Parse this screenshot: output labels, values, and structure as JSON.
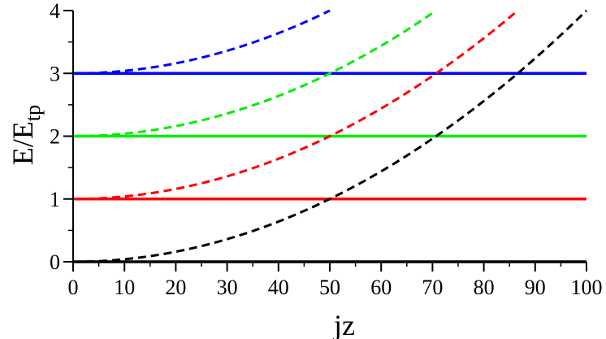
{
  "chart_data": {
    "type": "line",
    "xlabel": "jz",
    "ylabel_main": "E/E",
    "ylabel_sub": "tp",
    "xlim": [
      0,
      100
    ],
    "ylim": [
      0,
      4
    ],
    "xticks": [
      0,
      10,
      20,
      30,
      40,
      50,
      60,
      70,
      80,
      90,
      100
    ],
    "yticks": [
      0,
      1,
      2,
      3,
      4
    ],
    "grid": false,
    "series": [
      {
        "style": "solid",
        "color": "#000000",
        "x": [
          0,
          100
        ],
        "y": [
          0,
          0
        ]
      },
      {
        "style": "solid",
        "color": "#ff0000",
        "x": [
          0,
          100
        ],
        "y": [
          1,
          1
        ]
      },
      {
        "style": "solid",
        "color": "#00ee00",
        "x": [
          0,
          100
        ],
        "y": [
          2,
          2
        ]
      },
      {
        "style": "solid",
        "color": "#0000ff",
        "x": [
          0,
          100
        ],
        "y": [
          3,
          3
        ]
      },
      {
        "style": "dashed",
        "color": "#000000",
        "x": [
          0,
          10,
          20,
          30,
          40,
          50,
          60,
          70,
          80,
          90,
          100
        ],
        "y": [
          0,
          0.04,
          0.16,
          0.36,
          0.64,
          1.0,
          1.44,
          1.96,
          2.56,
          3.24,
          4.0
        ]
      },
      {
        "style": "dashed",
        "color": "#ff0000",
        "x": [
          0,
          10,
          20,
          30,
          40,
          50,
          60,
          70,
          80,
          86.6
        ],
        "y": [
          1,
          1.04,
          1.16,
          1.36,
          1.64,
          2.0,
          2.44,
          2.96,
          3.56,
          4.0
        ]
      },
      {
        "style": "dashed",
        "color": "#00ee00",
        "x": [
          0,
          10,
          20,
          30,
          40,
          50,
          60,
          70.7
        ],
        "y": [
          2,
          2.04,
          2.16,
          2.36,
          2.64,
          3.0,
          3.44,
          4.0
        ]
      },
      {
        "style": "dashed",
        "color": "#0000ff",
        "x": [
          0,
          10,
          20,
          30,
          40,
          50
        ],
        "y": [
          3,
          3.04,
          3.16,
          3.36,
          3.64,
          4.0
        ]
      }
    ]
  }
}
